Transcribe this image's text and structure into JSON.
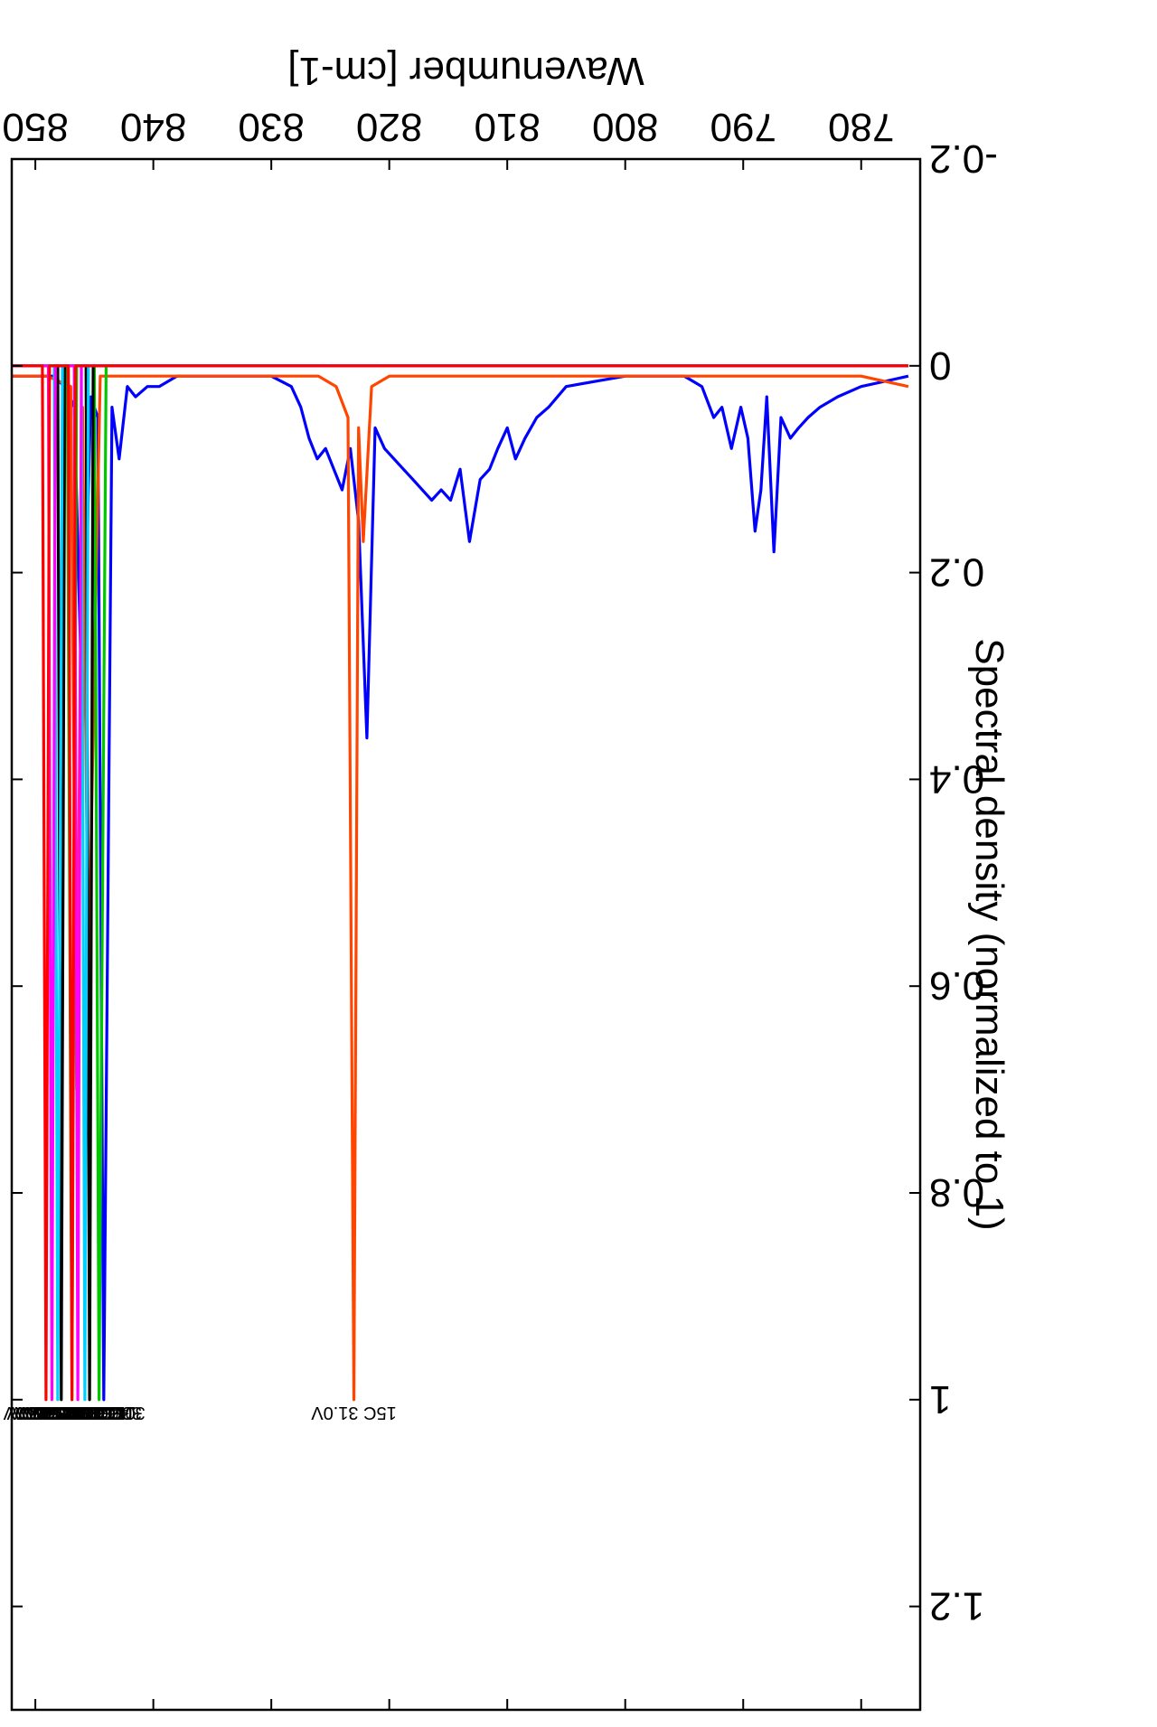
{
  "chart_data": {
    "type": "line",
    "title": "",
    "xlabel": "Wavenumber [cm-1]",
    "ylabel": "Spectral density (normalized to 1)",
    "xlim": [
      775,
      852
    ],
    "ylim": [
      -0.2,
      1.3
    ],
    "x_ticks": [
      "780",
      "790",
      "800",
      "810",
      "820",
      "830",
      "840",
      "850"
    ],
    "y_ticks": [
      "-0.2",
      "0",
      "0.2",
      "0.4",
      "0.6",
      "0.8",
      "1",
      "1.2"
    ],
    "grid": false,
    "legend": "none",
    "orientation": "figure rotated 90 degrees clockwise (x axis on the right side, y axis along the bottom, text upside-down)",
    "baseline": {
      "x": [
        776.0,
        852.0
      ],
      "y": [
        0.0,
        0.0
      ]
    },
    "series": [
      {
        "color": "#0000ff",
        "x": [
          776,
          778,
          780,
          782,
          783.5,
          784.5,
          785.3,
          786,
          786.8,
          787.4,
          788,
          788.5,
          789,
          789.6,
          790.2,
          791,
          791.8,
          792.5,
          793.5,
          795,
          800,
          805,
          806.5,
          807.5,
          808.5,
          809.3,
          810,
          810.8,
          811.5,
          812.3,
          813.2,
          814,
          814.8,
          815.6,
          816.4,
          817.2,
          818,
          818.8,
          819.6,
          820.4,
          821.2,
          821.9,
          822.6,
          823.3,
          824,
          824.7,
          825.4,
          826.1,
          826.8,
          827.5,
          828.3,
          830,
          835,
          838,
          839.5,
          840.5,
          841.5,
          842.2,
          842.9,
          843.5,
          844.2,
          844.7,
          845.3,
          846,
          846.7,
          847.5,
          848.5,
          850,
          852
        ],
        "y": [
          0.01,
          0.015,
          0.02,
          0.03,
          0.04,
          0.05,
          0.06,
          0.07,
          0.05,
          0.18,
          0.03,
          0.12,
          0.16,
          0.07,
          0.04,
          0.08,
          0.04,
          0.05,
          0.02,
          0.01,
          0.01,
          0.02,
          0.04,
          0.05,
          0.07,
          0.09,
          0.06,
          0.08,
          0.1,
          0.11,
          0.17,
          0.1,
          0.13,
          0.12,
          0.13,
          0.12,
          0.11,
          0.1,
          0.09,
          0.08,
          0.06,
          0.36,
          0.15,
          0.08,
          0.12,
          0.1,
          0.08,
          0.09,
          0.07,
          0.04,
          0.02,
          0.01,
          0.01,
          0.01,
          0.02,
          0.02,
          0.03,
          0.02,
          0.09,
          0.04,
          1.0,
          0.05,
          0.03,
          0.35,
          0.04,
          0.02,
          0.01,
          0.01,
          0.01
        ]
      },
      {
        "color": "#ff4500",
        "x": [
          776,
          780,
          790,
          800,
          810,
          818,
          820,
          821.5,
          822.2,
          822.6,
          823.0,
          823.5,
          824.5,
          826,
          830,
          840,
          844.5,
          845.0,
          845.5,
          846.0,
          846.5,
          847,
          849,
          852
        ],
        "y": [
          0.02,
          0.01,
          0.01,
          0.01,
          0.01,
          0.01,
          0.01,
          0.02,
          0.17,
          0.06,
          1.0,
          0.05,
          0.02,
          0.01,
          0.01,
          0.01,
          0.01,
          0.29,
          0.61,
          0.04,
          0.7,
          0.02,
          0.01,
          0.01
        ]
      },
      {
        "color": "#00c800",
        "x": [
          776,
          800,
          830,
          844.0,
          844.6,
          845.0,
          846.5,
          846.9,
          847.3,
          852
        ],
        "y": [
          0.0,
          0.0,
          0.0,
          0.0,
          1.0,
          0.0,
          0.0,
          1.0,
          0.0,
          0.0
        ]
      },
      {
        "color": "#000000",
        "x": [
          776,
          845.1,
          845.4,
          845.7,
          847.5,
          847.8,
          848.1,
          852
        ],
        "y": [
          0.0,
          0.0,
          1.0,
          0.0,
          0.0,
          1.0,
          0.0,
          0.0
        ]
      },
      {
        "color": "#00cfff",
        "x": [
          776,
          845.5,
          845.8,
          846.1,
          847.7,
          848.1,
          848.4,
          852
        ],
        "y": [
          0.0,
          0.0,
          1.0,
          0.0,
          0.0,
          1.0,
          0.0,
          0.0
        ]
      },
      {
        "color": "#ff00ff",
        "x": [
          776,
          846.1,
          846.4,
          846.7,
          848.3,
          848.6,
          848.9,
          852
        ],
        "y": [
          0.0,
          0.0,
          1.0,
          0.0,
          0.0,
          1.0,
          0.0,
          0.0
        ]
      },
      {
        "color": "#ff0000",
        "x": [
          776,
          846.6,
          846.9,
          847.2,
          848.8,
          849.1,
          849.4,
          852
        ],
        "y": [
          0.0,
          0.0,
          1.0,
          0.0,
          0.0,
          1.0,
          0.0,
          0.0
        ]
      }
    ],
    "peak_labels": [
      {
        "text": "15C 31.0V",
        "x": 823.0
      },
      {
        "text": "30C 31.0V",
        "x": 844.3
      },
      {
        "text": "30C 31.0V",
        "x": 844.6
      },
      {
        "text": "15C 31.0V",
        "x": 845.1
      },
      {
        "text": "30C 31.0V",
        "x": 845.4
      },
      {
        "text": "40C 31.0V",
        "x": 845.7
      },
      {
        "text": "15C 32.0V",
        "x": 846.0
      },
      {
        "text": "30C 32.0V",
        "x": 846.3
      },
      {
        "text": "40C 32.0V",
        "x": 846.6
      },
      {
        "text": "15C 33.0V",
        "x": 846.9
      },
      {
        "text": "30C 33.0V",
        "x": 847.3
      },
      {
        "text": "40C 33.0V",
        "x": 847.6
      },
      {
        "text": "15C 34.0V",
        "x": 847.9
      },
      {
        "text": "30C 34.0V",
        "x": 848.2
      },
      {
        "text": "40C 34.0V",
        "x": 848.5
      },
      {
        "text": "30C 35.0V",
        "x": 848.8
      },
      {
        "text": "30C 41.0V",
        "x": 849.1
      }
    ]
  }
}
